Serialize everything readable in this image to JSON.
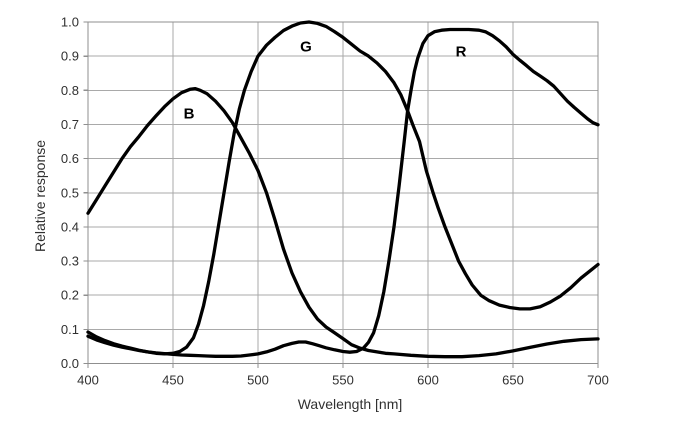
{
  "figure": {
    "background": "#ffffff"
  },
  "chart_data": {
    "type": "line",
    "title": "",
    "xlabel": "Wavelength [nm]",
    "ylabel": "Relative response",
    "x_range": [
      400,
      700
    ],
    "y_range": [
      0,
      1
    ],
    "x_ticks": [
      400,
      450,
      500,
      550,
      600,
      650,
      700
    ],
    "x_tick_labels": [
      "400",
      "450",
      "500",
      "550",
      "600",
      "650",
      "700"
    ],
    "y_ticks": [
      0,
      0.1,
      0.2,
      0.3,
      0.4,
      0.5,
      0.6,
      0.7,
      0.8,
      0.9,
      1.0
    ],
    "y_tick_labels": [
      "0.0",
      "0.1",
      "0.2",
      "0.3",
      "0.4",
      "0.5",
      "0.6",
      "0.7",
      "0.8",
      "0.9",
      "1.0"
    ],
    "grid": true,
    "legend_position": "none",
    "grid_color": "#a9a9a9",
    "axis_color": "#8f8f8f",
    "line_color": "#000000",
    "line_width": 3.3,
    "series": [
      {
        "name": "B",
        "points": [
          [
            400,
            0.44
          ],
          [
            405,
            0.48
          ],
          [
            410,
            0.52
          ],
          [
            415,
            0.56
          ],
          [
            420,
            0.6
          ],
          [
            425,
            0.635
          ],
          [
            430,
            0.665
          ],
          [
            435,
            0.697
          ],
          [
            440,
            0.725
          ],
          [
            445,
            0.752
          ],
          [
            450,
            0.775
          ],
          [
            455,
            0.793
          ],
          [
            460,
            0.803
          ],
          [
            463,
            0.805
          ],
          [
            466,
            0.8
          ],
          [
            470,
            0.79
          ],
          [
            475,
            0.768
          ],
          [
            480,
            0.74
          ],
          [
            485,
            0.705
          ],
          [
            490,
            0.66
          ],
          [
            495,
            0.615
          ],
          [
            500,
            0.565
          ],
          [
            505,
            0.5
          ],
          [
            510,
            0.42
          ],
          [
            515,
            0.335
          ],
          [
            520,
            0.265
          ],
          [
            525,
            0.21
          ],
          [
            530,
            0.165
          ],
          [
            535,
            0.13
          ],
          [
            540,
            0.107
          ],
          [
            545,
            0.09
          ],
          [
            550,
            0.073
          ],
          [
            555,
            0.055
          ],
          [
            560,
            0.045
          ],
          [
            565,
            0.038
          ],
          [
            570,
            0.034
          ],
          [
            575,
            0.03
          ],
          [
            580,
            0.028
          ],
          [
            590,
            0.024
          ],
          [
            600,
            0.021
          ],
          [
            610,
            0.02
          ],
          [
            620,
            0.02
          ],
          [
            630,
            0.023
          ],
          [
            640,
            0.028
          ],
          [
            650,
            0.037
          ],
          [
            660,
            0.047
          ],
          [
            670,
            0.057
          ],
          [
            680,
            0.065
          ],
          [
            690,
            0.07
          ],
          [
            700,
            0.072
          ]
        ]
      },
      {
        "name": "G",
        "points": [
          [
            400,
            0.092
          ],
          [
            405,
            0.078
          ],
          [
            410,
            0.067
          ],
          [
            415,
            0.058
          ],
          [
            420,
            0.051
          ],
          [
            425,
            0.045
          ],
          [
            430,
            0.039
          ],
          [
            435,
            0.034
          ],
          [
            440,
            0.03
          ],
          [
            445,
            0.028
          ],
          [
            450,
            0.03
          ],
          [
            454,
            0.035
          ],
          [
            458,
            0.048
          ],
          [
            462,
            0.075
          ],
          [
            465,
            0.115
          ],
          [
            468,
            0.17
          ],
          [
            471,
            0.24
          ],
          [
            474,
            0.32
          ],
          [
            477,
            0.41
          ],
          [
            480,
            0.5
          ],
          [
            483,
            0.59
          ],
          [
            486,
            0.675
          ],
          [
            489,
            0.745
          ],
          [
            492,
            0.8
          ],
          [
            496,
            0.855
          ],
          [
            500,
            0.9
          ],
          [
            505,
            0.932
          ],
          [
            510,
            0.955
          ],
          [
            515,
            0.975
          ],
          [
            520,
            0.988
          ],
          [
            525,
            0.997
          ],
          [
            530,
            1.0
          ],
          [
            535,
            0.996
          ],
          [
            540,
            0.987
          ],
          [
            545,
            0.972
          ],
          [
            550,
            0.955
          ],
          [
            555,
            0.935
          ],
          [
            560,
            0.915
          ],
          [
            565,
            0.9
          ],
          [
            570,
            0.88
          ],
          [
            575,
            0.855
          ],
          [
            580,
            0.822
          ],
          [
            584,
            0.787
          ],
          [
            588,
            0.74
          ],
          [
            591,
            0.7
          ],
          [
            595,
            0.65
          ],
          [
            599,
            0.565
          ],
          [
            603,
            0.5
          ],
          [
            606,
            0.455
          ],
          [
            610,
            0.4
          ],
          [
            614,
            0.35
          ],
          [
            618,
            0.3
          ],
          [
            622,
            0.263
          ],
          [
            626,
            0.23
          ],
          [
            631,
            0.2
          ],
          [
            636,
            0.184
          ],
          [
            642,
            0.171
          ],
          [
            648,
            0.164
          ],
          [
            654,
            0.16
          ],
          [
            660,
            0.16
          ],
          [
            666,
            0.166
          ],
          [
            672,
            0.18
          ],
          [
            678,
            0.198
          ],
          [
            684,
            0.222
          ],
          [
            690,
            0.25
          ],
          [
            695,
            0.27
          ],
          [
            700,
            0.29
          ]
        ]
      },
      {
        "name": "R",
        "points": [
          [
            400,
            0.08
          ],
          [
            405,
            0.069
          ],
          [
            410,
            0.061
          ],
          [
            415,
            0.054
          ],
          [
            420,
            0.048
          ],
          [
            425,
            0.043
          ],
          [
            430,
            0.038
          ],
          [
            435,
            0.034
          ],
          [
            440,
            0.031
          ],
          [
            445,
            0.029
          ],
          [
            450,
            0.027
          ],
          [
            455,
            0.025
          ],
          [
            460,
            0.024
          ],
          [
            465,
            0.023
          ],
          [
            470,
            0.022
          ],
          [
            475,
            0.021
          ],
          [
            480,
            0.021
          ],
          [
            485,
            0.021
          ],
          [
            490,
            0.022
          ],
          [
            495,
            0.025
          ],
          [
            500,
            0.028
          ],
          [
            505,
            0.034
          ],
          [
            510,
            0.042
          ],
          [
            515,
            0.052
          ],
          [
            520,
            0.059
          ],
          [
            524,
            0.063
          ],
          [
            528,
            0.063
          ],
          [
            532,
            0.058
          ],
          [
            536,
            0.052
          ],
          [
            540,
            0.046
          ],
          [
            545,
            0.04
          ],
          [
            550,
            0.035
          ],
          [
            554,
            0.033
          ],
          [
            558,
            0.035
          ],
          [
            562,
            0.045
          ],
          [
            565,
            0.062
          ],
          [
            568,
            0.09
          ],
          [
            571,
            0.14
          ],
          [
            574,
            0.21
          ],
          [
            577,
            0.3
          ],
          [
            580,
            0.4
          ],
          [
            583,
            0.52
          ],
          [
            586,
            0.65
          ],
          [
            588,
            0.74
          ],
          [
            590,
            0.8
          ],
          [
            592,
            0.855
          ],
          [
            594,
            0.895
          ],
          [
            597,
            0.937
          ],
          [
            600,
            0.96
          ],
          [
            604,
            0.972
          ],
          [
            608,
            0.976
          ],
          [
            613,
            0.978
          ],
          [
            618,
            0.978
          ],
          [
            624,
            0.978
          ],
          [
            630,
            0.976
          ],
          [
            634,
            0.971
          ],
          [
            638,
            0.96
          ],
          [
            642,
            0.945
          ],
          [
            646,
            0.927
          ],
          [
            650,
            0.905
          ],
          [
            654,
            0.888
          ],
          [
            658,
            0.872
          ],
          [
            662,
            0.855
          ],
          [
            666,
            0.842
          ],
          [
            670,
            0.828
          ],
          [
            674,
            0.812
          ],
          [
            678,
            0.79
          ],
          [
            682,
            0.768
          ],
          [
            686,
            0.75
          ],
          [
            690,
            0.733
          ],
          [
            694,
            0.716
          ],
          [
            697,
            0.705
          ],
          [
            700,
            0.699
          ]
        ]
      }
    ]
  }
}
